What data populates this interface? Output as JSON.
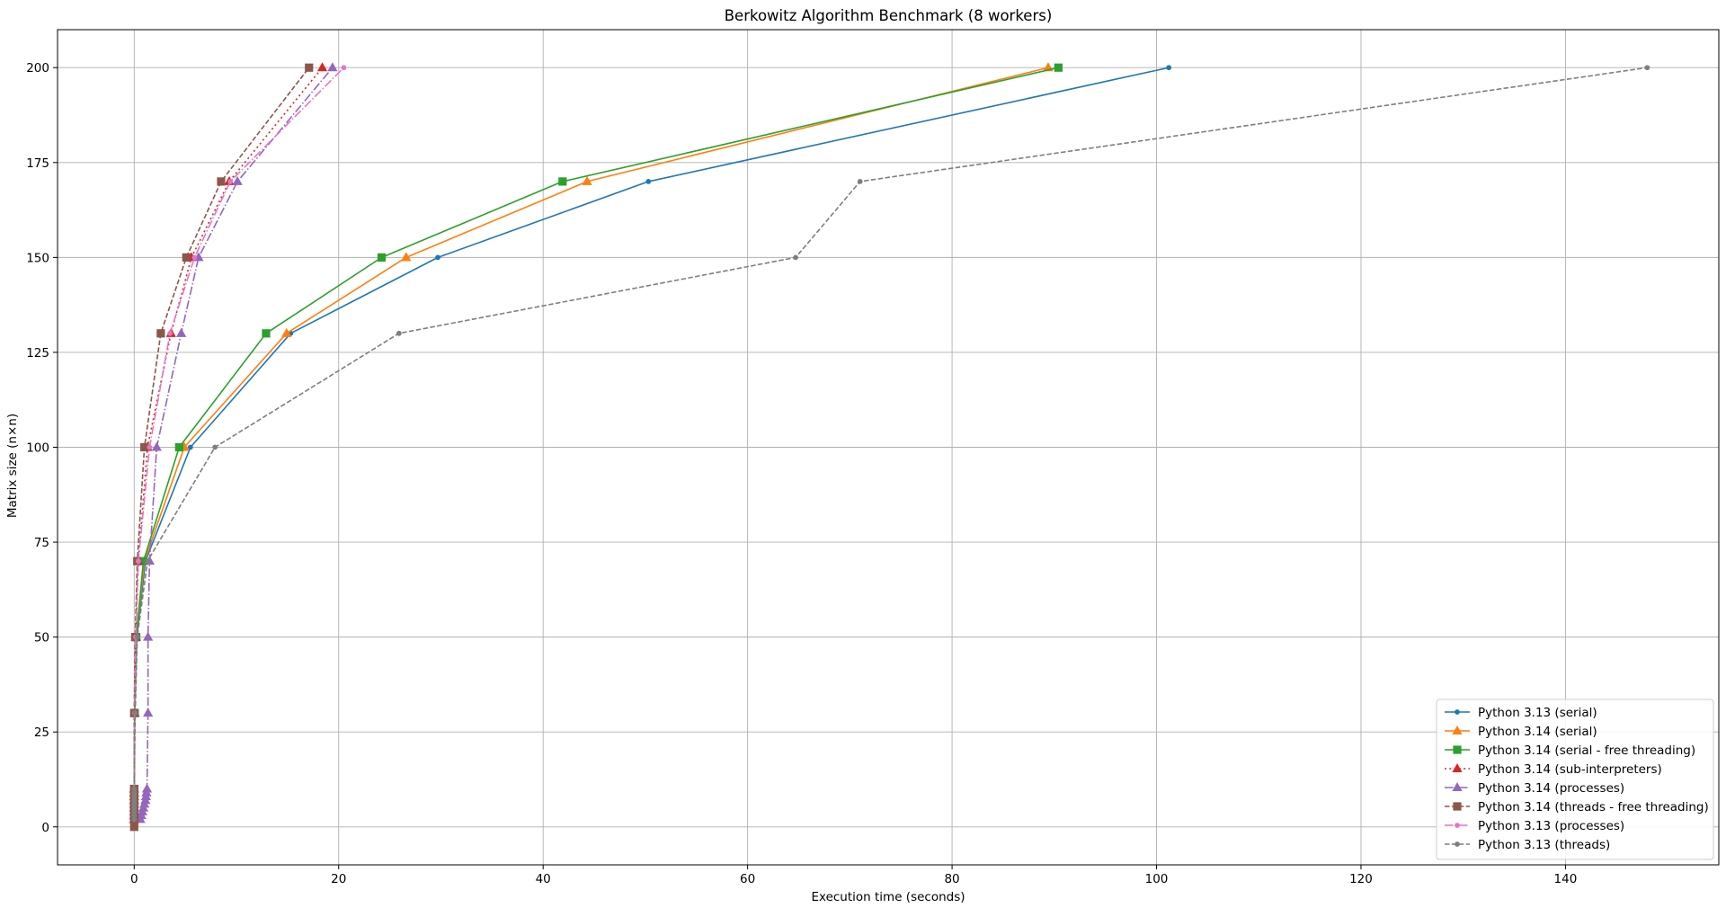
{
  "chart_data": {
    "type": "line",
    "title": "Berkowitz Algorithm Benchmark (8 workers)",
    "xlabel": "Execution time (seconds)",
    "ylabel": "Matrix size (n×n)",
    "xlim": [
      -7.5,
      155
    ],
    "ylim": [
      -10,
      210
    ],
    "xticks": [
      0,
      20,
      40,
      60,
      80,
      100,
      120,
      140
    ],
    "yticks": [
      0,
      25,
      50,
      75,
      100,
      125,
      150,
      175,
      200
    ],
    "grid": true,
    "legend_position": "lower-right",
    "series": [
      {
        "name": "Python 3.13 (serial)",
        "color": "#1f77b4",
        "marker": "point",
        "dash": "solid",
        "points": [
          [
            0.0,
            2
          ],
          [
            0.0,
            3
          ],
          [
            0.0,
            4
          ],
          [
            0.0,
            5
          ],
          [
            0.0,
            6
          ],
          [
            0.0,
            7
          ],
          [
            0.0,
            8
          ],
          [
            0.0,
            9
          ],
          [
            0.0,
            10
          ],
          [
            0.05,
            30
          ],
          [
            0.25,
            50
          ],
          [
            1.1,
            70
          ],
          [
            5.5,
            100
          ],
          [
            15.3,
            130
          ],
          [
            29.7,
            150
          ],
          [
            50.3,
            170
          ],
          [
            101.2,
            200
          ]
        ]
      },
      {
        "name": "Python 3.14 (serial)",
        "color": "#ff7f0e",
        "marker": "triangle",
        "dash": "solid",
        "points": [
          [
            0.0,
            2
          ],
          [
            0.0,
            3
          ],
          [
            0.0,
            4
          ],
          [
            0.0,
            5
          ],
          [
            0.0,
            6
          ],
          [
            0.0,
            7
          ],
          [
            0.0,
            8
          ],
          [
            0.0,
            9
          ],
          [
            0.0,
            10
          ],
          [
            0.05,
            30
          ],
          [
            0.2,
            50
          ],
          [
            1.0,
            70
          ],
          [
            4.9,
            100
          ],
          [
            14.9,
            130
          ],
          [
            26.6,
            150
          ],
          [
            44.3,
            170
          ],
          [
            89.4,
            200
          ]
        ]
      },
      {
        "name": "Python 3.14 (serial - free threading)",
        "color": "#2ca02c",
        "marker": "square",
        "dash": "solid",
        "points": [
          [
            0.0,
            2
          ],
          [
            0.0,
            3
          ],
          [
            0.0,
            4
          ],
          [
            0.0,
            5
          ],
          [
            0.0,
            6
          ],
          [
            0.0,
            7
          ],
          [
            0.0,
            8
          ],
          [
            0.0,
            9
          ],
          [
            0.0,
            10
          ],
          [
            0.05,
            30
          ],
          [
            0.2,
            50
          ],
          [
            0.9,
            70
          ],
          [
            4.4,
            100
          ],
          [
            12.9,
            130
          ],
          [
            24.2,
            150
          ],
          [
            41.9,
            170
          ],
          [
            90.4,
            200
          ]
        ]
      },
      {
        "name": "Python 3.14 (sub-interpreters)",
        "color": "#d62728",
        "marker": "triangle",
        "dash": "dotted",
        "points": [
          [
            0.0,
            2
          ],
          [
            0.0,
            3
          ],
          [
            0.0,
            4
          ],
          [
            0.0,
            5
          ],
          [
            0.0,
            6
          ],
          [
            0.0,
            7
          ],
          [
            0.0,
            8
          ],
          [
            0.0,
            9
          ],
          [
            0.0,
            10
          ],
          [
            0.05,
            30
          ],
          [
            0.15,
            50
          ],
          [
            0.4,
            70
          ],
          [
            1.3,
            100
          ],
          [
            3.6,
            130
          ],
          [
            5.6,
            150
          ],
          [
            9.3,
            170
          ],
          [
            18.4,
            200
          ]
        ]
      },
      {
        "name": "Python 3.14 (processes)",
        "color": "#9467bd",
        "marker": "triangle",
        "dash": "dashdot",
        "points": [
          [
            0.6,
            2
          ],
          [
            0.7,
            3
          ],
          [
            0.8,
            4
          ],
          [
            0.9,
            5
          ],
          [
            1.0,
            6
          ],
          [
            1.1,
            7
          ],
          [
            1.15,
            8
          ],
          [
            1.2,
            9
          ],
          [
            1.25,
            10
          ],
          [
            1.35,
            30
          ],
          [
            1.35,
            50
          ],
          [
            1.5,
            70
          ],
          [
            2.2,
            100
          ],
          [
            4.6,
            130
          ],
          [
            6.3,
            150
          ],
          [
            10.1,
            170
          ],
          [
            19.4,
            200
          ]
        ]
      },
      {
        "name": "Python 3.14 (threads - free threading)",
        "color": "#8c564b",
        "marker": "square",
        "dash": "dashed",
        "points": [
          [
            0.0,
            0
          ],
          [
            0.0,
            2
          ],
          [
            0.0,
            3
          ],
          [
            0.0,
            4
          ],
          [
            0.0,
            5
          ],
          [
            0.0,
            6
          ],
          [
            0.0,
            7
          ],
          [
            0.0,
            8
          ],
          [
            0.0,
            9
          ],
          [
            0.0,
            10
          ],
          [
            0.0,
            30
          ],
          [
            0.1,
            50
          ],
          [
            0.3,
            70
          ],
          [
            1.0,
            100
          ],
          [
            2.6,
            130
          ],
          [
            5.1,
            150
          ],
          [
            8.5,
            170
          ],
          [
            17.1,
            200
          ]
        ]
      },
      {
        "name": "Python 3.13 (processes)",
        "color": "#e377c2",
        "marker": "point",
        "dash": "dashdot",
        "points": [
          [
            0.0,
            2
          ],
          [
            0.0,
            3
          ],
          [
            0.0,
            4
          ],
          [
            0.0,
            5
          ],
          [
            0.0,
            6
          ],
          [
            0.0,
            7
          ],
          [
            0.0,
            8
          ],
          [
            0.0,
            9
          ],
          [
            0.0,
            10
          ],
          [
            0.05,
            30
          ],
          [
            0.15,
            50
          ],
          [
            0.4,
            70
          ],
          [
            1.5,
            100
          ],
          [
            3.5,
            130
          ],
          [
            5.9,
            150
          ],
          [
            9.4,
            170
          ],
          [
            20.5,
            200
          ]
        ]
      },
      {
        "name": "Python 3.13 (threads)",
        "color": "#7f7f7f",
        "marker": "point",
        "dash": "dashed",
        "points": [
          [
            0.0,
            2
          ],
          [
            0.0,
            3
          ],
          [
            0.0,
            4
          ],
          [
            0.0,
            5
          ],
          [
            0.0,
            6
          ],
          [
            0.0,
            7
          ],
          [
            0.0,
            8
          ],
          [
            0.0,
            9
          ],
          [
            0.0,
            10
          ],
          [
            0.1,
            30
          ],
          [
            0.3,
            50
          ],
          [
            1.3,
            70
          ],
          [
            7.9,
            100
          ],
          [
            25.9,
            130
          ],
          [
            64.7,
            150
          ],
          [
            71.0,
            170
          ],
          [
            148.0,
            200
          ]
        ]
      }
    ]
  }
}
